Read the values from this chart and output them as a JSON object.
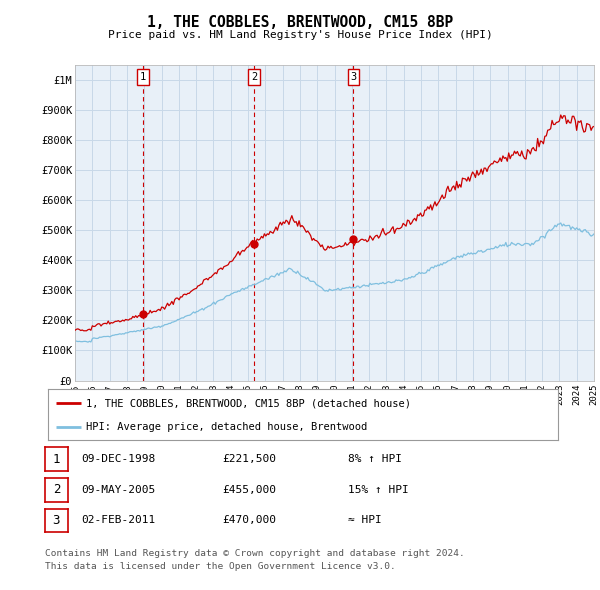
{
  "title": "1, THE COBBLES, BRENTWOOD, CM15 8BP",
  "subtitle": "Price paid vs. HM Land Registry's House Price Index (HPI)",
  "y_ticks": [
    0,
    100000,
    200000,
    300000,
    400000,
    500000,
    600000,
    700000,
    800000,
    900000,
    1000000
  ],
  "y_tick_labels": [
    "£0",
    "£100K",
    "£200K",
    "£300K",
    "£400K",
    "£500K",
    "£600K",
    "£700K",
    "£800K",
    "£900K",
    "£1M"
  ],
  "sale_points": [
    {
      "label": "1",
      "date": "09-DEC-1998",
      "year": 1998.93,
      "price": 221500
    },
    {
      "label": "2",
      "date": "09-MAY-2005",
      "year": 2005.36,
      "price": 455000
    },
    {
      "label": "3",
      "date": "02-FEB-2011",
      "year": 2011.09,
      "price": 470000
    }
  ],
  "property_line_color": "#cc0000",
  "hpi_line_color": "#7fbfdf",
  "background_color": "#ffffff",
  "plot_bg_color": "#e8f0f8",
  "grid_color": "#c8d8e8",
  "legend_entries": [
    "1, THE COBBLES, BRENTWOOD, CM15 8BP (detached house)",
    "HPI: Average price, detached house, Brentwood"
  ],
  "table_rows": [
    [
      "1",
      "09-DEC-1998",
      "£221,500",
      "8% ↑ HPI"
    ],
    [
      "2",
      "09-MAY-2005",
      "£455,000",
      "15% ↑ HPI"
    ],
    [
      "3",
      "02-FEB-2011",
      "£470,000",
      "≈ HPI"
    ]
  ],
  "footnote1": "Contains HM Land Registry data © Crown copyright and database right 2024.",
  "footnote2": "This data is licensed under the Open Government Licence v3.0."
}
